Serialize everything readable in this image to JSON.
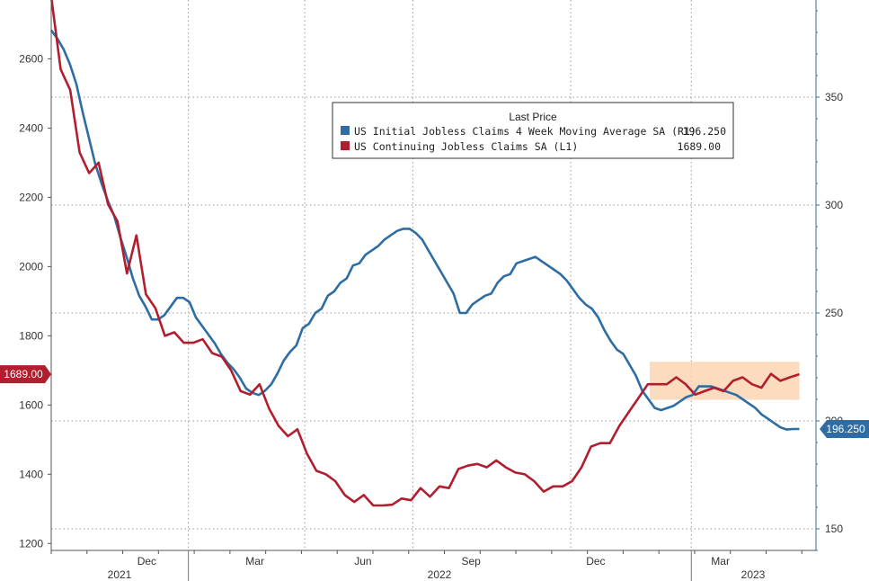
{
  "chart_data": {
    "type": "line",
    "legend": {
      "title": "Last Price",
      "entries": [
        {
          "label": "US Initial Jobless Claims 4 Week Moving Average SA  (R1)",
          "value": "196.250",
          "color": "#2e6da4"
        },
        {
          "label": "US Continuing Jobless Claims SA  (L1)",
          "value": "1689.00",
          "color": "#b01e2f"
        }
      ]
    },
    "left_axis": {
      "ticks": [
        "1200",
        "1400",
        "1600",
        "1800",
        "2000",
        "2200",
        "2400",
        "2600"
      ],
      "range": [
        1180,
        2770
      ]
    },
    "right_axis": {
      "ticks": [
        "150",
        "200",
        "250",
        "300",
        "350"
      ],
      "range": [
        140,
        395
      ]
    },
    "x_axis": {
      "month_labels": [
        "Dec",
        "Mar",
        "Jun",
        "Sep",
        "Dec",
        "Mar"
      ],
      "year_labels": [
        "2021",
        "2022",
        "2023"
      ],
      "week_range": [
        0,
        92
      ]
    },
    "last_value_badges": {
      "left": "1689.00",
      "right": "196.250"
    },
    "highlight": {
      "week_start": 72,
      "week_end": 90,
      "value_min": 1615,
      "value_max": 1725,
      "color": "#fbd5b3"
    },
    "series": [
      {
        "name": "US Continuing Jobless Claims SA",
        "axis": "left",
        "color": "#b01e2f",
        "values": [
          2780,
          2570,
          2510,
          2330,
          2270,
          2300,
          2180,
          2130,
          1980,
          2090,
          1920,
          1880,
          1800,
          1810,
          1780,
          1780,
          1790,
          1750,
          1740,
          1700,
          1640,
          1630,
          1660,
          1590,
          1540,
          1510,
          1530,
          1460,
          1410,
          1400,
          1380,
          1340,
          1320,
          1340,
          1310,
          1310,
          1312,
          1330,
          1325,
          1360,
          1335,
          1365,
          1360,
          1415,
          1425,
          1430,
          1420,
          1440,
          1420,
          1405,
          1400,
          1380,
          1350,
          1365,
          1365,
          1380,
          1420,
          1480,
          1490,
          1490,
          1540,
          1580,
          1620,
          1660,
          1660,
          1660,
          1680,
          1660,
          1630,
          1640,
          1650,
          1640,
          1670,
          1680,
          1660,
          1650,
          1690,
          1670,
          1680,
          1689
        ]
      },
      {
        "name": "US Initial Jobless Claims 4 Week Moving Average SA",
        "axis": "right",
        "color": "#2e6da4",
        "values": [
          381,
          377,
          372,
          365,
          356,
          343,
          331,
          319,
          310,
          302,
          295,
          285,
          276,
          266,
          258,
          253,
          247,
          247,
          249,
          253,
          257,
          257,
          255,
          248,
          244,
          240,
          236,
          231,
          227,
          224,
          220,
          215,
          213,
          212,
          214,
          217,
          222,
          228,
          232,
          235,
          243,
          245,
          250,
          252,
          258,
          260,
          264,
          266,
          272,
          273,
          277,
          279,
          281,
          284,
          286,
          288,
          289,
          289,
          287,
          284,
          279,
          274,
          269,
          264,
          259,
          250,
          250,
          254,
          256,
          258,
          259,
          264,
          267,
          268,
          273,
          274,
          275,
          276,
          274,
          272,
          270,
          268,
          265,
          261,
          257,
          254,
          252,
          248,
          242,
          237,
          233,
          231,
          226,
          221,
          214,
          210,
          206,
          205,
          206,
          207,
          209,
          211,
          212,
          216,
          216,
          216,
          215,
          214,
          213,
          212,
          210,
          208,
          206,
          203,
          201,
          199,
          197,
          196,
          196.25,
          196.25
        ]
      }
    ]
  }
}
